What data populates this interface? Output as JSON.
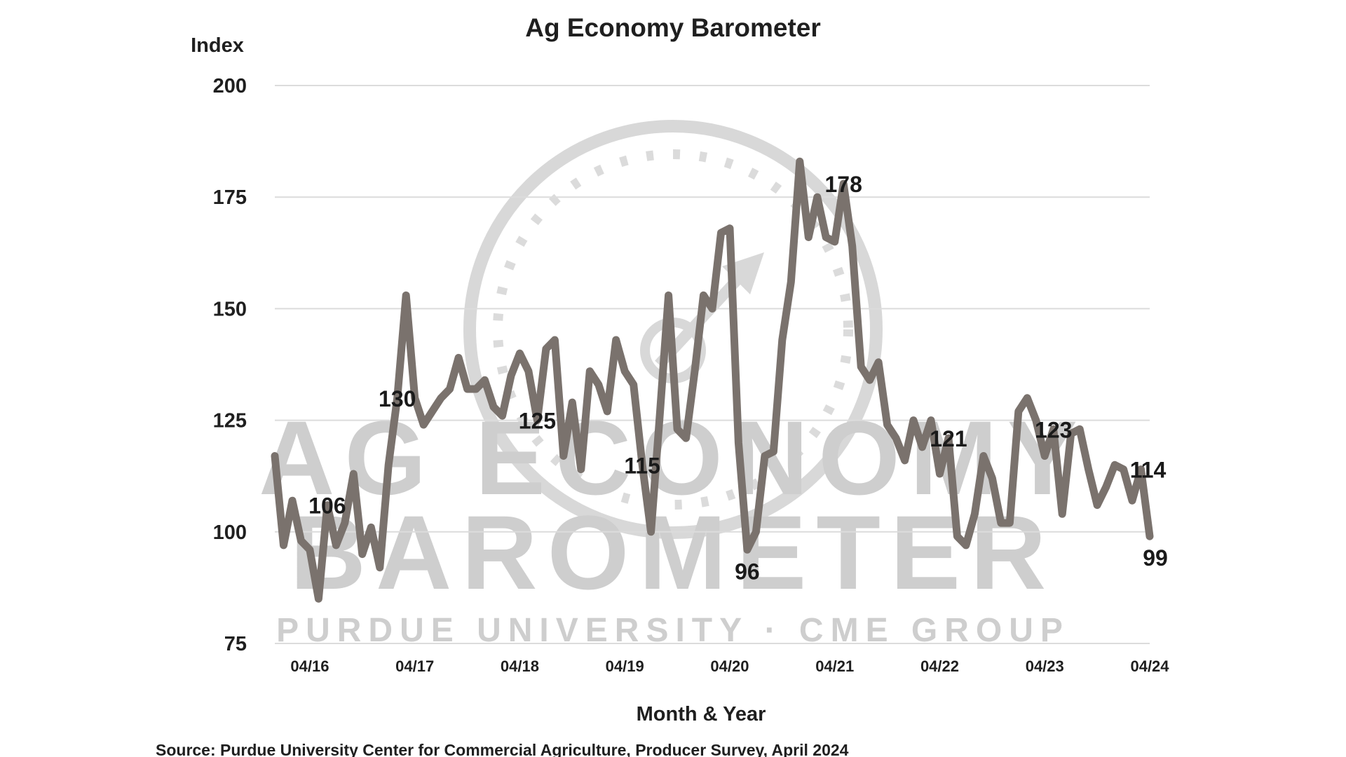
{
  "chart_data": {
    "type": "line",
    "title": "Ag Economy Barometer",
    "ylabel": "Index",
    "xlabel": "Month & Year",
    "ylim": [
      75,
      200
    ],
    "yticks": [
      "200",
      "175",
      "150",
      "125",
      "100",
      "75"
    ],
    "ytick_values": [
      200,
      175,
      150,
      125,
      100,
      75
    ],
    "grid": true,
    "xticks": [
      {
        "label": "04/16",
        "month_index": 4
      },
      {
        "label": "04/17",
        "month_index": 16
      },
      {
        "label": "04/18",
        "month_index": 28
      },
      {
        "label": "04/19",
        "month_index": 40
      },
      {
        "label": "04/20",
        "month_index": 52
      },
      {
        "label": "04/21",
        "month_index": 64
      },
      {
        "label": "04/22",
        "month_index": 76
      },
      {
        "label": "04/23",
        "month_index": 88
      },
      {
        "label": "04/24",
        "month_index": 100
      }
    ],
    "series": [
      {
        "color": "#7a726d",
        "values": [
          117,
          97,
          107,
          98,
          96,
          85,
          106,
          97,
          102,
          113,
          95,
          101,
          92,
          115,
          130,
          153,
          130,
          124,
          127,
          130,
          132,
          139,
          132,
          132,
          134,
          128,
          126,
          135,
          140,
          136,
          125,
          141,
          143,
          117,
          129,
          114,
          136,
          133,
          127,
          143,
          136,
          133,
          115,
          100,
          126,
          153,
          123,
          121,
          136,
          153,
          150,
          167,
          168,
          120,
          96,
          100,
          117,
          118,
          143,
          156,
          183,
          166,
          175,
          166,
          165,
          178,
          164,
          137,
          134,
          138,
          124,
          121,
          116,
          125,
          119,
          125,
          113,
          121,
          99,
          97,
          104,
          117,
          112,
          102,
          102,
          127,
          130,
          125,
          117,
          123,
          104,
          122,
          123,
          114,
          106,
          110,
          115,
          114,
          107,
          114,
          99
        ]
      }
    ],
    "annotations": [
      {
        "text": "106",
        "month_index": 6,
        "value": 106
      },
      {
        "text": "130",
        "month_index": 14,
        "value": 130
      },
      {
        "text": "125",
        "month_index": 30,
        "value": 125
      },
      {
        "text": "115",
        "month_index": 42,
        "value": 115
      },
      {
        "text": "96",
        "month_index": 54,
        "value": 96
      },
      {
        "text": "178",
        "month_index": 65,
        "value": 178
      },
      {
        "text": "121",
        "month_index": 77,
        "value": 121
      },
      {
        "text": "123",
        "month_index": 89,
        "value": 123
      },
      {
        "text": "114",
        "month_index": 99,
        "value": 114
      },
      {
        "text": "99",
        "month_index": 100,
        "value": 99
      }
    ],
    "source": "Source: Purdue University Center for Commercial Agriculture, Producer Survey, April 2024"
  },
  "watermark": {
    "line1": "AG ECONOMY",
    "line2": "BAROMETER",
    "line3": "PURDUE UNIVERSITY · CME GROUP"
  }
}
